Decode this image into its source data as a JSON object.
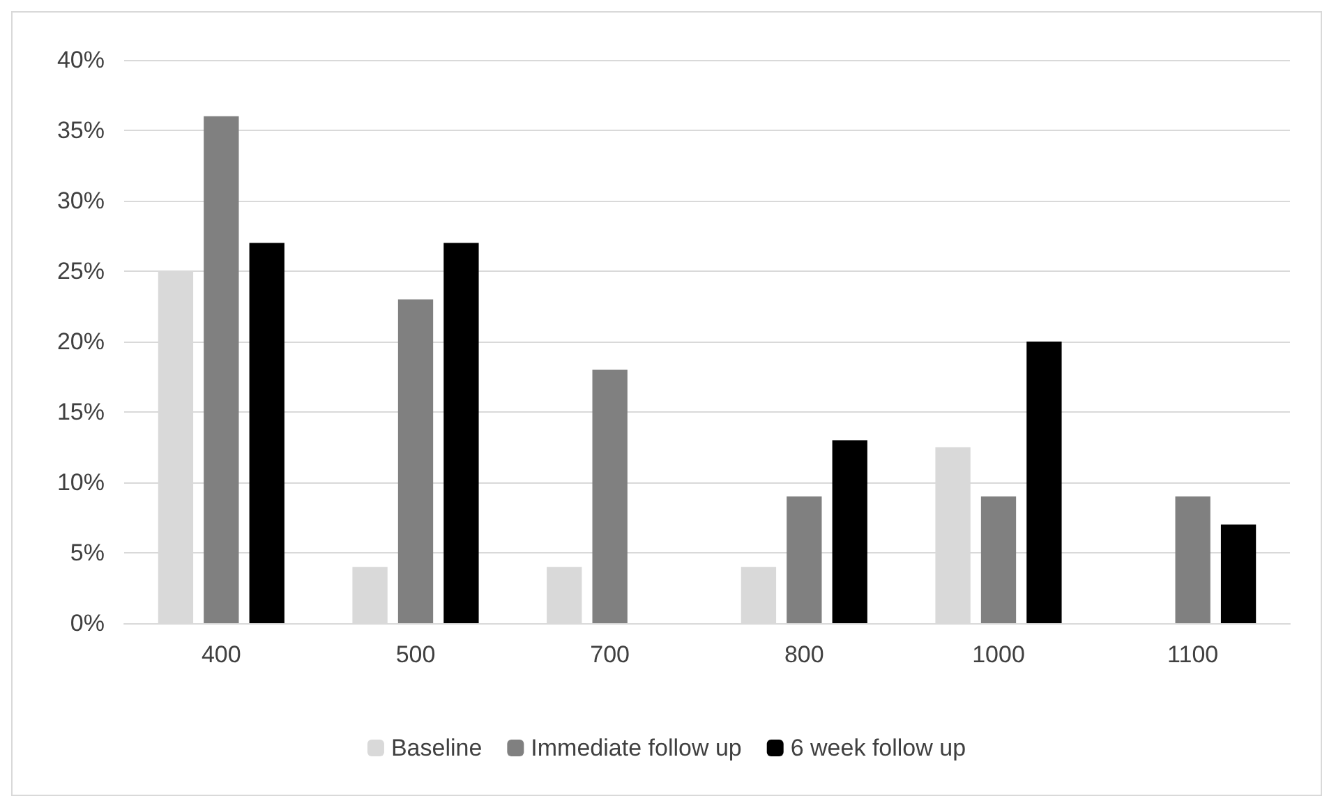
{
  "chart_data": {
    "type": "bar",
    "categories": [
      "400",
      "500",
      "700",
      "800",
      "1000",
      "1100"
    ],
    "series": [
      {
        "name": "Baseline",
        "color": "#d9d9d9",
        "values": [
          25,
          4,
          4,
          4,
          12.5,
          0
        ]
      },
      {
        "name": "Immediate follow up",
        "color": "#808080",
        "values": [
          36,
          23,
          18,
          9,
          9,
          9
        ]
      },
      {
        "name": "6 week follow up",
        "color": "#000000",
        "values": [
          27,
          27,
          0,
          13,
          20,
          7
        ]
      }
    ],
    "ylim": [
      0,
      40
    ],
    "yticks": [
      {
        "value": 0,
        "label": "0%"
      },
      {
        "value": 5,
        "label": "5%"
      },
      {
        "value": 10,
        "label": "10%"
      },
      {
        "value": 15,
        "label": "15%"
      },
      {
        "value": 20,
        "label": "20%"
      },
      {
        "value": 25,
        "label": "25%"
      },
      {
        "value": 30,
        "label": "30%"
      },
      {
        "value": 35,
        "label": "35%"
      },
      {
        "value": 40,
        "label": "40%"
      }
    ],
    "grid": "y",
    "legend": "bottom"
  }
}
